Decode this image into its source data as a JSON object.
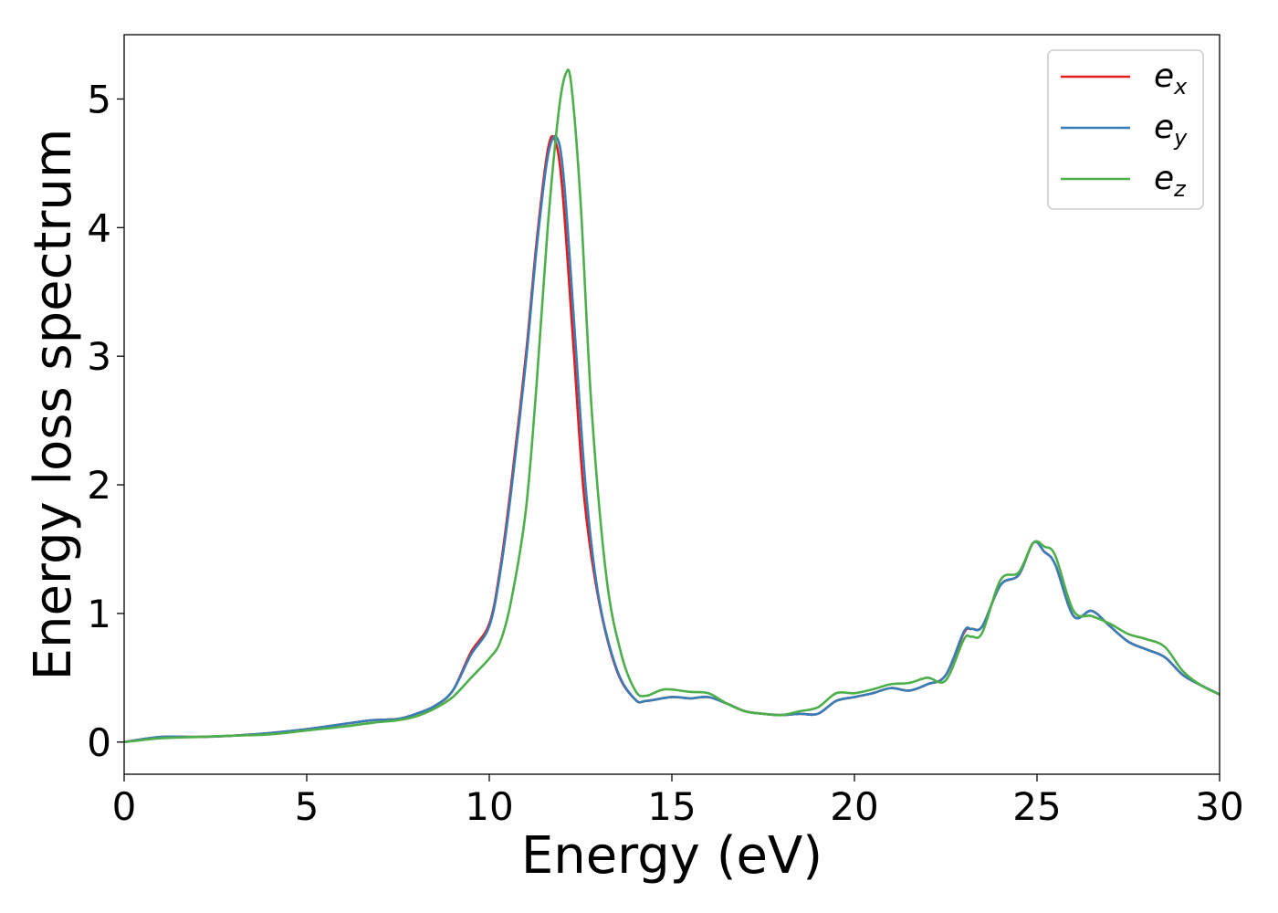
{
  "chart_data": {
    "type": "line",
    "title": "",
    "xlabel": "Energy (eV)",
    "ylabel": "Energy loss spectrum",
    "xlim": [
      0,
      30
    ],
    "ylim": [
      -0.25,
      5.5
    ],
    "x_ticks": [
      0,
      5,
      10,
      15,
      20,
      25,
      30
    ],
    "y_ticks": [
      0,
      1,
      2,
      3,
      4,
      5
    ],
    "grid": false,
    "legend_position": "top-right",
    "series": [
      {
        "name": "e",
        "subscript": "x",
        "color": "#e41a1c",
        "x": [
          0,
          1,
          2,
          3,
          4,
          5,
          6,
          6.8,
          7.5,
          8,
          8.5,
          9,
          9.5,
          10,
          10.3,
          10.6,
          11,
          11.3,
          11.6,
          11.8,
          12.0,
          12.3,
          12.6,
          13,
          13.5,
          14,
          14.3,
          15,
          15.5,
          16,
          16.5,
          17,
          17.5,
          18,
          18.5,
          19,
          19.5,
          20,
          20.5,
          21,
          21.5,
          22,
          22.5,
          23,
          23.2,
          23.5,
          24,
          24.5,
          24.9,
          25.2,
          25.5,
          26,
          26.5,
          27,
          27.5,
          28,
          28.5,
          29,
          29.5,
          30
        ],
        "y": [
          0,
          0.04,
          0.04,
          0.05,
          0.07,
          0.1,
          0.14,
          0.17,
          0.18,
          0.22,
          0.28,
          0.4,
          0.7,
          0.92,
          1.35,
          2.0,
          3.0,
          3.9,
          4.6,
          4.68,
          4.3,
          3.1,
          1.9,
          1.1,
          0.55,
          0.33,
          0.32,
          0.35,
          0.34,
          0.35,
          0.3,
          0.24,
          0.22,
          0.21,
          0.22,
          0.22,
          0.32,
          0.35,
          0.38,
          0.42,
          0.4,
          0.45,
          0.52,
          0.85,
          0.88,
          0.9,
          1.22,
          1.3,
          1.55,
          1.48,
          1.38,
          0.98,
          1.02,
          0.9,
          0.78,
          0.72,
          0.66,
          0.52,
          0.44,
          0.37
        ]
      },
      {
        "name": "e",
        "subscript": "y",
        "color": "#377eb8",
        "x": [
          0,
          1,
          2,
          3,
          4,
          5,
          6,
          6.8,
          7.5,
          8,
          8.5,
          9,
          9.5,
          10,
          10.3,
          10.6,
          11,
          11.3,
          11.6,
          11.85,
          12.05,
          12.35,
          12.65,
          13,
          13.5,
          14,
          14.3,
          15,
          15.5,
          16,
          16.5,
          17,
          17.5,
          18,
          18.5,
          19,
          19.5,
          20,
          20.5,
          21,
          21.5,
          22,
          22.5,
          23,
          23.2,
          23.5,
          24,
          24.5,
          24.9,
          25.2,
          25.5,
          26,
          26.5,
          27,
          27.5,
          28,
          28.5,
          29,
          29.5,
          30
        ],
        "y": [
          0,
          0.04,
          0.04,
          0.05,
          0.07,
          0.1,
          0.14,
          0.17,
          0.18,
          0.22,
          0.28,
          0.4,
          0.68,
          0.9,
          1.32,
          1.95,
          2.95,
          3.85,
          4.55,
          4.7,
          4.35,
          3.15,
          1.95,
          1.12,
          0.56,
          0.33,
          0.32,
          0.35,
          0.34,
          0.35,
          0.3,
          0.24,
          0.22,
          0.21,
          0.22,
          0.22,
          0.32,
          0.35,
          0.38,
          0.42,
          0.4,
          0.45,
          0.52,
          0.86,
          0.88,
          0.9,
          1.22,
          1.3,
          1.55,
          1.48,
          1.38,
          0.98,
          1.02,
          0.9,
          0.78,
          0.72,
          0.66,
          0.52,
          0.44,
          0.37
        ]
      },
      {
        "name": "e",
        "subscript": "z",
        "color": "#4daf4a",
        "x": [
          0,
          1,
          2,
          3,
          4,
          5,
          6,
          6.8,
          7.5,
          8,
          8.5,
          9,
          9.5,
          10,
          10.3,
          10.6,
          11,
          11.3,
          11.6,
          11.9,
          12.1,
          12.25,
          12.5,
          12.8,
          13.2,
          13.6,
          14,
          14.3,
          14.8,
          15.5,
          16,
          16.5,
          17,
          17.5,
          18,
          18.5,
          19,
          19.5,
          20,
          20.5,
          21,
          21.5,
          22,
          22.5,
          23,
          23.2,
          23.5,
          24,
          24.5,
          24.9,
          25.2,
          25.5,
          26,
          26.5,
          27,
          27.5,
          28,
          28.5,
          29,
          29.5,
          30
        ],
        "y": [
          0,
          0.03,
          0.04,
          0.05,
          0.06,
          0.09,
          0.12,
          0.15,
          0.17,
          0.2,
          0.26,
          0.35,
          0.5,
          0.65,
          0.78,
          1.1,
          1.8,
          2.8,
          4.0,
          4.9,
          5.2,
          5.1,
          4.2,
          2.6,
          1.3,
          0.7,
          0.4,
          0.36,
          0.41,
          0.39,
          0.38,
          0.3,
          0.24,
          0.22,
          0.21,
          0.24,
          0.27,
          0.38,
          0.38,
          0.41,
          0.45,
          0.46,
          0.5,
          0.48,
          0.8,
          0.82,
          0.85,
          1.26,
          1.32,
          1.55,
          1.52,
          1.45,
          1.02,
          0.98,
          0.92,
          0.84,
          0.8,
          0.74,
          0.55,
          0.44,
          0.37
        ]
      }
    ]
  }
}
